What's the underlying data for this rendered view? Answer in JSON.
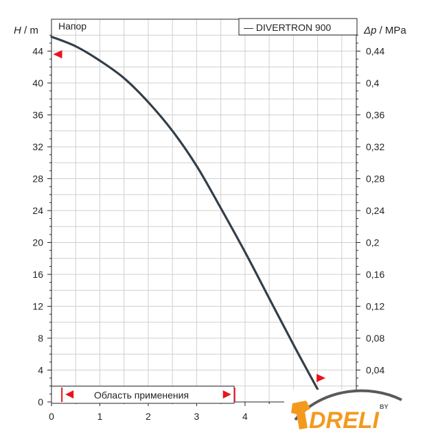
{
  "chart_data": {
    "type": "line",
    "title": "Напор",
    "ylabel_left": {
      "symbol": "H",
      "unit": " / m"
    },
    "ylabel_right": {
      "symbol": "Δp",
      "unit": " / MPa"
    },
    "xlim": [
      0,
      6.3
    ],
    "ylim_left": [
      0,
      48
    ],
    "ylim_right": [
      0,
      0.48
    ],
    "x_ticks": [
      "0",
      "1",
      "2",
      "3",
      "4"
    ],
    "y_left_ticks": [
      "0",
      "4",
      "8",
      "12",
      "16",
      "20",
      "24",
      "28",
      "32",
      "36",
      "40",
      "44"
    ],
    "y_right_ticks": [
      "0,04",
      "0,08",
      "0,12",
      "0,16",
      "0,2",
      "0,24",
      "0,28",
      "0,32",
      "0,36",
      "0,4",
      "0,44"
    ],
    "grid": true,
    "legend": {
      "position": "top-right",
      "entries": [
        "— DIVERTRON 900"
      ]
    },
    "series": [
      {
        "name": "DIVERTRON 900",
        "color": "#333e48",
        "x": [
          0,
          0.5,
          1.0,
          1.5,
          2.0,
          2.5,
          3.0,
          3.5,
          4.0,
          4.5,
          5.0,
          5.5,
          5.65
        ],
        "y": [
          45.8,
          44.6,
          42.8,
          40.6,
          37.6,
          34.0,
          29.6,
          24.3,
          18.8,
          13.0,
          7.2,
          1.6,
          0
        ]
      }
    ],
    "markers": [
      {
        "x": 0.12,
        "y": 43.6,
        "color": "#e8141b",
        "direction": "left"
      },
      {
        "x": 5.55,
        "y": 3.0,
        "color": "#e8141b",
        "direction": "right"
      }
    ],
    "annotation": {
      "text": "Область применения",
      "range": [
        0.3,
        3.7
      ],
      "color": "#e8141b"
    }
  },
  "overlay": {
    "logo_text": "DRELI",
    "logo_small": "BY",
    "colors": {
      "logo_orange": "#f39a1e",
      "logo_gray": "#5a5a5a"
    }
  }
}
